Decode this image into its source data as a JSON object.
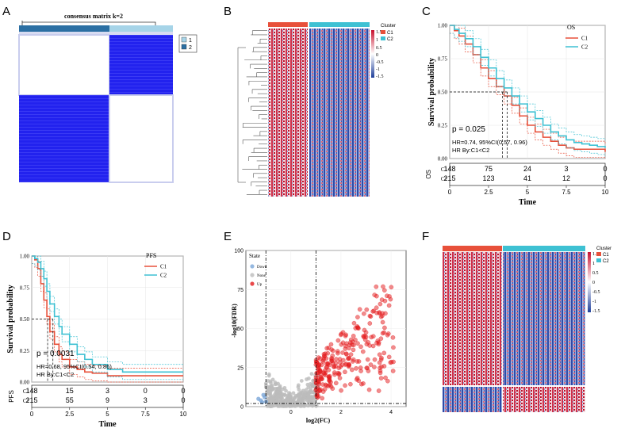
{
  "panel_letters": {
    "A": "A",
    "B": "B",
    "C": "C",
    "D": "D",
    "E": "E",
    "F": "F"
  },
  "colors": {
    "c1": "#e8503a",
    "c2": "#3ec1d3",
    "blue": "#1f1ff0",
    "hm_red": "#c8102e",
    "hm_blue": "#1f3f9a",
    "up": "#e41a1c",
    "none": "#bbbbbb",
    "down": "#7aa6d8"
  },
  "panel_a": {
    "title": "consensus matrix k=2",
    "legend": [
      "1",
      "2"
    ]
  },
  "panel_b": {
    "legend_title": "Cluster",
    "legend_items": [
      "C1",
      "C2"
    ],
    "scale_ticks": [
      "1.5",
      "1",
      "0.5",
      "0",
      "-0.5",
      "-1",
      "-1.5"
    ]
  },
  "panel_f": {
    "legend_title": "Cluster",
    "legend_items": [
      "C1",
      "C2"
    ],
    "scale_ticks": [
      "1.5",
      "1",
      "0.5",
      "0",
      "-0.5",
      "-1",
      "-1.5"
    ]
  },
  "chart_data": [
    {
      "type": "line",
      "panel": "C",
      "legend_title": "OS",
      "legend": [
        "C1",
        "C2"
      ],
      "ylabel": "Survival probability",
      "xlabel": "Time",
      "xlim": [
        0,
        10
      ],
      "ylim": [
        0,
        1
      ],
      "x_ticks": [
        "0",
        "2.5",
        "5",
        "7.5",
        "10"
      ],
      "y_ticks": [
        "0.00",
        "0.25",
        "0.50",
        "0.75",
        "1.00"
      ],
      "pvalue": "p = 0.025",
      "hr": "HR=0.74, 95%CI(0.57, 0.96)",
      "hr_by": "HR By:C1<C2",
      "risk_table": {
        "label": "OS",
        "rows": [
          {
            "name": "C1",
            "values": [
              "148",
              "75",
              "24",
              "3",
              "0"
            ]
          },
          {
            "name": "C2",
            "values": [
              "215",
              "123",
              "41",
              "12",
              "0"
            ]
          }
        ],
        "x_ticks": [
          "0",
          "2.5",
          "5",
          "7.5",
          "10"
        ]
      },
      "median_marks": [
        3.4,
        3.7
      ],
      "series": [
        {
          "name": "C1",
          "x": [
            0,
            0.3,
            0.6,
            1,
            1.5,
            2,
            2.5,
            3,
            3.5,
            4,
            4.5,
            5,
            5.5,
            6,
            6.5,
            7,
            7.5,
            8,
            8.5,
            9,
            9.5,
            10
          ],
          "y": [
            1,
            0.96,
            0.92,
            0.86,
            0.78,
            0.68,
            0.6,
            0.54,
            0.47,
            0.4,
            0.32,
            0.25,
            0.2,
            0.16,
            0.13,
            0.1,
            0.08,
            0.07,
            0.07,
            0.07,
            0.07,
            0.05
          ]
        },
        {
          "name": "C2",
          "x": [
            0,
            0.3,
            0.6,
            1,
            1.5,
            2,
            2.5,
            3,
            3.5,
            4,
            4.5,
            5,
            5.5,
            6,
            6.5,
            7,
            7.5,
            8,
            8.5,
            9,
            9.5,
            10
          ],
          "y": [
            1,
            0.97,
            0.94,
            0.9,
            0.84,
            0.76,
            0.68,
            0.6,
            0.53,
            0.47,
            0.41,
            0.35,
            0.3,
            0.25,
            0.2,
            0.17,
            0.14,
            0.12,
            0.11,
            0.1,
            0.09,
            0.08
          ]
        }
      ]
    },
    {
      "type": "line",
      "panel": "D",
      "legend_title": "PFS",
      "legend": [
        "C1",
        "C2"
      ],
      "ylabel": "Survival probability",
      "xlabel": "Time",
      "xlim": [
        0,
        10
      ],
      "ylim": [
        0,
        1
      ],
      "x_ticks": [
        "0",
        "2.5",
        "5",
        "7.5",
        "10"
      ],
      "y_ticks": [
        "0.00",
        "0.25",
        "0.50",
        "0.75",
        "1.00"
      ],
      "pvalue": "p = 0.0031",
      "hr": "HR=0.68, 95%CI(0.54, 0.86)",
      "hr_by": "HR By:C1<C2",
      "risk_table": {
        "label": "PFS",
        "rows": [
          {
            "name": "C1",
            "values": [
              "148",
              "15",
              "3",
              "0",
              "0"
            ]
          },
          {
            "name": "C2",
            "values": [
              "215",
              "55",
              "9",
              "3",
              "0"
            ]
          }
        ],
        "x_ticks": [
          "0",
          "2.5",
          "5",
          "7.5",
          "10"
        ]
      },
      "median_marks": [
        1.05,
        1.4
      ],
      "series": [
        {
          "name": "C1",
          "x": [
            0,
            0.2,
            0.4,
            0.6,
            0.8,
            1,
            1.2,
            1.5,
            1.8,
            2,
            2.5,
            3,
            3.5,
            4,
            5,
            6,
            7,
            8,
            9,
            10
          ],
          "y": [
            1,
            0.97,
            0.9,
            0.78,
            0.65,
            0.52,
            0.4,
            0.3,
            0.22,
            0.18,
            0.12,
            0.1,
            0.08,
            0.07,
            0.05,
            0.05,
            0.05,
            0.05,
            0.05,
            0.05
          ]
        },
        {
          "name": "C2",
          "x": [
            0,
            0.2,
            0.4,
            0.6,
            0.8,
            1,
            1.2,
            1.5,
            1.8,
            2,
            2.5,
            3,
            3.5,
            4,
            5,
            6,
            7,
            8,
            9,
            10
          ],
          "y": [
            1,
            0.98,
            0.95,
            0.9,
            0.82,
            0.72,
            0.62,
            0.52,
            0.44,
            0.38,
            0.3,
            0.22,
            0.18,
            0.14,
            0.1,
            0.08,
            0.08,
            0.08,
            0.08,
            0.08
          ]
        }
      ]
    },
    {
      "type": "scatter",
      "panel": "E",
      "legend_title": "State",
      "legend": [
        "Down",
        "None",
        "Up"
      ],
      "xlabel": "log2(FC)",
      "ylabel": "-log10(FDR)",
      "x_ticks": [
        "0",
        "2",
        "4"
      ],
      "y_ticks": [
        "0",
        "25",
        "50",
        "75",
        "100"
      ],
      "xlim": [
        -1.8,
        4.6
      ],
      "ylim": [
        0,
        100
      ],
      "thresholds": {
        "fc": [
          -1,
          1
        ],
        "fdr": 2
      }
    }
  ]
}
